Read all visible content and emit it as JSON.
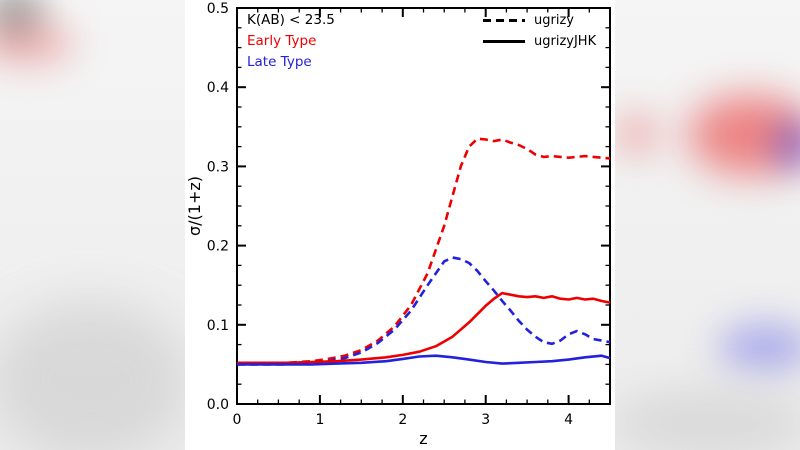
{
  "chart_data": {
    "type": "line",
    "title": "",
    "xlabel": "z",
    "ylabel": "σ/(1+z)",
    "xlim": [
      0,
      4.5
    ],
    "ylim": [
      0,
      0.5
    ],
    "grid": false,
    "x_ticks": [
      0,
      1,
      2,
      3,
      4
    ],
    "x_tick_labels": [
      "0",
      "1",
      "2",
      "3",
      "4"
    ],
    "y_ticks": [
      0.0,
      0.1,
      0.2,
      0.3,
      0.4,
      0.5
    ],
    "y_tick_labels": [
      "0.0",
      "0.1",
      "0.2",
      "0.3",
      "0.4",
      "0.5"
    ],
    "annotations": [
      {
        "text": "K(AB) < 23.5",
        "color": "#000000"
      },
      {
        "text": "Early Type",
        "color": "#ee0000"
      },
      {
        "text": "Late Type",
        "color": "#2222dd"
      }
    ],
    "legend": [
      {
        "label": "ugrizy",
        "style": "dashed"
      },
      {
        "label": "ugrizyJHK",
        "style": "solid"
      }
    ],
    "legend_position": "top-right",
    "series": [
      {
        "name": "early-type-ugrizy",
        "color": "#ee0000",
        "style": "dashed",
        "x": [
          0,
          0.3,
          0.6,
          0.9,
          1.1,
          1.3,
          1.5,
          1.7,
          1.9,
          2.1,
          2.3,
          2.5,
          2.7,
          2.8,
          2.9,
          3.0,
          3.1,
          3.2,
          3.3,
          3.4,
          3.5,
          3.6,
          3.7,
          3.8,
          3.9,
          4.0,
          4.1,
          4.2,
          4.3,
          4.4,
          4.5
        ],
        "y": [
          0.051,
          0.051,
          0.052,
          0.054,
          0.057,
          0.061,
          0.068,
          0.08,
          0.098,
          0.125,
          0.165,
          0.225,
          0.3,
          0.325,
          0.335,
          0.334,
          0.332,
          0.334,
          0.33,
          0.327,
          0.322,
          0.315,
          0.312,
          0.313,
          0.312,
          0.311,
          0.312,
          0.313,
          0.312,
          0.311,
          0.31
        ]
      },
      {
        "name": "late-type-ugrizy",
        "color": "#2222dd",
        "style": "dashed",
        "x": [
          0,
          0.3,
          0.6,
          0.9,
          1.1,
          1.3,
          1.5,
          1.7,
          1.9,
          2.1,
          2.3,
          2.5,
          2.6,
          2.7,
          2.8,
          2.9,
          3.0,
          3.1,
          3.2,
          3.3,
          3.4,
          3.5,
          3.6,
          3.7,
          3.8,
          3.9,
          4.0,
          4.1,
          4.2,
          4.3,
          4.4,
          4.5
        ],
        "y": [
          0.05,
          0.05,
          0.05,
          0.052,
          0.054,
          0.058,
          0.065,
          0.077,
          0.094,
          0.118,
          0.15,
          0.18,
          0.185,
          0.183,
          0.178,
          0.168,
          0.155,
          0.143,
          0.13,
          0.118,
          0.105,
          0.094,
          0.085,
          0.078,
          0.076,
          0.08,
          0.088,
          0.092,
          0.088,
          0.082,
          0.08,
          0.078
        ]
      },
      {
        "name": "early-type-ugrizyJHK",
        "color": "#ee0000",
        "style": "solid",
        "x": [
          0,
          0.3,
          0.6,
          0.9,
          1.2,
          1.5,
          1.8,
          2.0,
          2.2,
          2.4,
          2.6,
          2.8,
          3.0,
          3.1,
          3.2,
          3.3,
          3.4,
          3.5,
          3.6,
          3.7,
          3.8,
          3.9,
          4.0,
          4.1,
          4.2,
          4.3,
          4.4,
          4.5
        ],
        "y": [
          0.052,
          0.052,
          0.052,
          0.053,
          0.054,
          0.056,
          0.059,
          0.062,
          0.066,
          0.073,
          0.085,
          0.103,
          0.124,
          0.133,
          0.14,
          0.138,
          0.136,
          0.135,
          0.136,
          0.134,
          0.136,
          0.133,
          0.132,
          0.134,
          0.132,
          0.133,
          0.13,
          0.128
        ]
      },
      {
        "name": "late-type-ugrizyJHK",
        "color": "#2222dd",
        "style": "solid",
        "x": [
          0,
          0.3,
          0.6,
          0.9,
          1.2,
          1.5,
          1.8,
          2.0,
          2.2,
          2.4,
          2.6,
          2.8,
          3.0,
          3.2,
          3.4,
          3.6,
          3.8,
          4.0,
          4.2,
          4.4,
          4.5
        ],
        "y": [
          0.05,
          0.05,
          0.05,
          0.05,
          0.051,
          0.052,
          0.054,
          0.057,
          0.06,
          0.061,
          0.059,
          0.056,
          0.053,
          0.051,
          0.052,
          0.053,
          0.054,
          0.056,
          0.059,
          0.061,
          0.058
        ]
      }
    ]
  },
  "colors": {
    "early_type": "#ee0000",
    "late_type": "#2222dd",
    "axis": "#000000",
    "panel_background": "#ffffff"
  }
}
